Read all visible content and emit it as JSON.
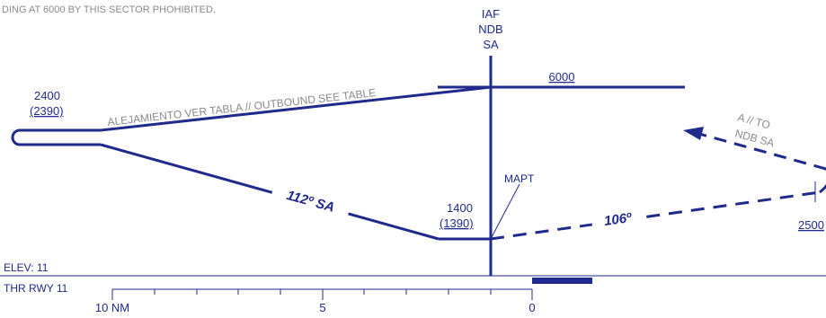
{
  "note": "DING AT 6000 BY THIS SECTOR PHOHIBITED.",
  "fix": {
    "type": "IAF",
    "facility": "NDB",
    "ident": "SA"
  },
  "sector_altitude": "6000",
  "outbound_text": "ALEJAMIENTO VER TABLA // OUTBOUND SEE TABLE",
  "turn_alt": {
    "msl": "2400",
    "height": "(2390)"
  },
  "inbound_course": "112º SA",
  "mapt": {
    "label": "MAPT",
    "msl": "1400",
    "height": "(1390)"
  },
  "missed_course": "106º",
  "return_text": {
    "line1": "A // TO",
    "line2": "NDB SA"
  },
  "right_alt": "2500",
  "elevation": "ELEV: 11",
  "threshold": "THR RWY 11",
  "scale": {
    "left": "10 NM",
    "mid": "5",
    "zero": "0"
  },
  "colors": {
    "navy": "#1f2a8c",
    "gray": "#8a8a8a"
  }
}
